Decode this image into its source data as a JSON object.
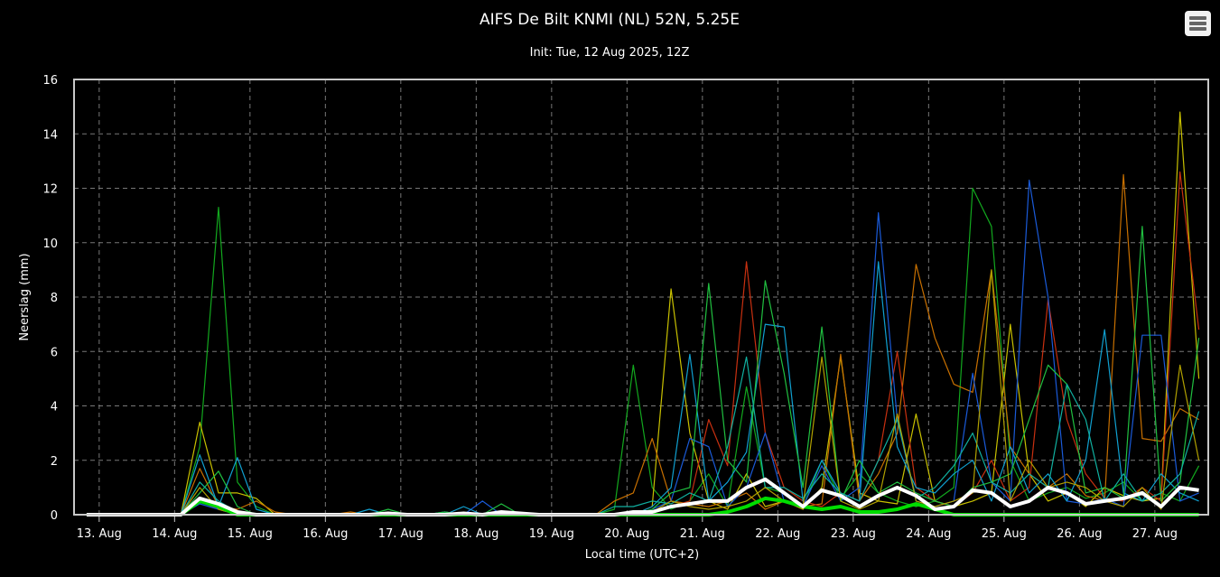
{
  "chart_data": {
    "type": "line",
    "title": "AIFS De Bilt KNMI (NL) 52N, 5.25E",
    "subtitle": "Init: Tue, 12 Aug 2025, 12Z",
    "xlabel": "Local time (UTC+2)",
    "ylabel": "Neerslag (mm)",
    "ylim": [
      0,
      16
    ],
    "yticks": [
      0,
      2,
      4,
      6,
      8,
      10,
      12,
      14,
      16
    ],
    "xlim": [
      "2025-08-12 16:00",
      "2025-08-27 17:00"
    ],
    "xticks": [
      {
        "date": "2025-08-13 00:00",
        "label": "13. Aug"
      },
      {
        "date": "2025-08-14 00:00",
        "label": "14. Aug"
      },
      {
        "date": "2025-08-15 00:00",
        "label": "15. Aug"
      },
      {
        "date": "2025-08-16 00:00",
        "label": "16. Aug"
      },
      {
        "date": "2025-08-17 00:00",
        "label": "17. Aug"
      },
      {
        "date": "2025-08-18 00:00",
        "label": "18. Aug"
      },
      {
        "date": "2025-08-19 00:00",
        "label": "19. Aug"
      },
      {
        "date": "2025-08-20 00:00",
        "label": "20. Aug"
      },
      {
        "date": "2025-08-21 00:00",
        "label": "21. Aug"
      },
      {
        "date": "2025-08-22 00:00",
        "label": "22. Aug"
      },
      {
        "date": "2025-08-23 00:00",
        "label": "23. Aug"
      },
      {
        "date": "2025-08-24 00:00",
        "label": "24. Aug"
      },
      {
        "date": "2025-08-25 00:00",
        "label": "25. Aug"
      },
      {
        "date": "2025-08-26 00:00",
        "label": "26. Aug"
      },
      {
        "date": "2025-08-27 00:00",
        "label": "27. Aug"
      }
    ],
    "grid": true,
    "legend": "none",
    "background": "#000000",
    "x": [
      "2025-08-12 20:00",
      "2025-08-13 02:00",
      "2025-08-13 08:00",
      "2025-08-13 14:00",
      "2025-08-13 20:00",
      "2025-08-14 02:00",
      "2025-08-14 08:00",
      "2025-08-14 14:00",
      "2025-08-14 20:00",
      "2025-08-15 02:00",
      "2025-08-15 08:00",
      "2025-08-15 14:00",
      "2025-08-15 20:00",
      "2025-08-16 02:00",
      "2025-08-16 08:00",
      "2025-08-16 14:00",
      "2025-08-16 20:00",
      "2025-08-17 02:00",
      "2025-08-17 08:00",
      "2025-08-17 14:00",
      "2025-08-17 20:00",
      "2025-08-18 02:00",
      "2025-08-18 08:00",
      "2025-08-18 14:00",
      "2025-08-18 20:00",
      "2025-08-19 02:00",
      "2025-08-19 08:00",
      "2025-08-19 14:00",
      "2025-08-19 20:00",
      "2025-08-20 02:00",
      "2025-08-20 08:00",
      "2025-08-20 14:00",
      "2025-08-20 20:00",
      "2025-08-21 02:00",
      "2025-08-21 08:00",
      "2025-08-21 14:00",
      "2025-08-21 20:00",
      "2025-08-22 02:00",
      "2025-08-22 08:00",
      "2025-08-22 14:00",
      "2025-08-22 20:00",
      "2025-08-23 02:00",
      "2025-08-23 08:00",
      "2025-08-23 14:00",
      "2025-08-23 20:00",
      "2025-08-24 02:00",
      "2025-08-24 08:00",
      "2025-08-24 14:00",
      "2025-08-24 20:00",
      "2025-08-25 02:00",
      "2025-08-25 08:00",
      "2025-08-25 14:00",
      "2025-08-25 20:00",
      "2025-08-26 02:00",
      "2025-08-26 08:00",
      "2025-08-26 14:00",
      "2025-08-26 20:00",
      "2025-08-27 02:00",
      "2025-08-27 08:00",
      "2025-08-27 14:00"
    ],
    "series": [
      {
        "color": "#12a81e",
        "role": "member",
        "values": [
          0,
          0,
          0,
          0,
          0,
          0,
          2.5,
          11.3,
          1.2,
          0.3,
          0,
          0,
          0,
          0,
          0,
          0,
          0.1,
          0,
          0,
          0.1,
          0,
          0,
          0,
          0,
          0,
          0,
          0,
          0,
          0.2,
          5.5,
          1.0,
          0.2,
          0.5,
          1.5,
          0.3,
          4.7,
          1.0,
          0.8,
          0.3,
          2.0,
          0.6,
          1.5,
          0.8,
          0.5,
          0.3,
          0.5,
          1.0,
          12.0,
          10.6,
          2.0,
          0.5,
          0.8,
          1.0,
          0.6,
          0.8,
          1.2,
          0.5,
          0.8,
          0.5,
          1.8
        ]
      },
      {
        "color": "#c8c000",
        "role": "member",
        "values": [
          0,
          0,
          0,
          0,
          0,
          0,
          3.4,
          0.8,
          0.8,
          0.6,
          0,
          0,
          0,
          0,
          0,
          0,
          0,
          0,
          0,
          0,
          0,
          0,
          0.1,
          0,
          0,
          0,
          0,
          0,
          0,
          0,
          0.3,
          8.3,
          3.0,
          0.5,
          0.2,
          1.5,
          0.3,
          0.5,
          0.2,
          1.0,
          5.8,
          0.8,
          0.5,
          0.4,
          3.7,
          0.5,
          0.3,
          0.5,
          0.8,
          7.0,
          1.5,
          0.5,
          0.8,
          0.3,
          1.0,
          0.7,
          0.5,
          0.6,
          14.8,
          5.0
        ]
      },
      {
        "color": "#c87000",
        "role": "member",
        "values": [
          0,
          0,
          0,
          0,
          0,
          0,
          1.7,
          0.3,
          0.2,
          0.5,
          0.1,
          0,
          0,
          0,
          0.1,
          0,
          0,
          0,
          0,
          0,
          0,
          0,
          0,
          0,
          0,
          0,
          0,
          0,
          0.5,
          0.8,
          2.8,
          0.5,
          0.4,
          0.3,
          0.5,
          0.8,
          0.2,
          0.5,
          0.3,
          0.4,
          5.9,
          0.5,
          1.5,
          3.0,
          9.2,
          6.5,
          4.8,
          4.5,
          9.0,
          2.5,
          1.5,
          1.0,
          1.5,
          0.7,
          0.5,
          12.5,
          2.8,
          2.7,
          3.9,
          3.5
        ]
      },
      {
        "color": "#c83010",
        "role": "member",
        "values": [
          0,
          0,
          0,
          0,
          0,
          0,
          0.5,
          0.2,
          0,
          0,
          0,
          0,
          0,
          0,
          0,
          0,
          0,
          0,
          0,
          0,
          0,
          0,
          0.1,
          0,
          0,
          0,
          0,
          0,
          0,
          0,
          0.1,
          0.3,
          0.5,
          3.5,
          1.8,
          9.3,
          3.0,
          1.0,
          0.5,
          0.3,
          0.8,
          0.5,
          2.0,
          6.0,
          1.0,
          0.5,
          0.3,
          0.8,
          2.0,
          0.5,
          1.0,
          7.9,
          3.5,
          1.5,
          0.6,
          0.5,
          1.0,
          0.5,
          12.6,
          6.8
        ]
      },
      {
        "color": "#1a5ad8",
        "role": "member",
        "values": [
          0,
          0,
          0,
          0,
          0,
          0,
          0.4,
          0.2,
          0,
          0,
          0,
          0,
          0,
          0,
          0,
          0,
          0,
          0,
          0,
          0.1,
          0,
          0.5,
          0,
          0,
          0,
          0,
          0,
          0,
          0,
          0,
          0.2,
          0.5,
          2.8,
          2.5,
          0.3,
          1.0,
          3.0,
          0.5,
          0.3,
          1.8,
          0.5,
          1.0,
          11.1,
          3.5,
          0.5,
          0.3,
          0.5,
          5.2,
          1.2,
          0.5,
          12.3,
          8.0,
          0.5,
          0.4,
          0.6,
          0.3,
          6.6,
          6.6,
          0.5,
          0.8
        ]
      },
      {
        "color": "#10a0d0",
        "role": "member",
        "values": [
          0,
          0,
          0,
          0,
          0,
          0,
          2.2,
          0.3,
          2.1,
          0.2,
          0,
          0,
          0,
          0,
          0,
          0.2,
          0,
          0,
          0,
          0,
          0.3,
          0,
          0,
          0,
          0,
          0,
          0,
          0,
          0,
          0,
          0.3,
          1.0,
          5.9,
          0.5,
          1.2,
          2.3,
          7.0,
          6.9,
          0.5,
          2.0,
          0.8,
          0.5,
          9.3,
          2.5,
          1.0,
          0.8,
          1.5,
          2.0,
          0.5,
          2.5,
          0.8,
          1.5,
          0.5,
          2.0,
          6.8,
          0.8,
          0.5,
          1.5,
          0.8,
          0.5
        ]
      },
      {
        "color": "#20c040",
        "role": "member",
        "values": [
          0,
          0,
          0,
          0,
          0,
          0,
          0.8,
          1.6,
          0.3,
          0,
          0,
          0,
          0,
          0,
          0,
          0,
          0.2,
          0,
          0,
          0.1,
          0,
          0,
          0.4,
          0,
          0,
          0,
          0,
          0,
          0,
          0,
          0.2,
          0.8,
          1.0,
          8.5,
          2.0,
          1.2,
          8.6,
          5.2,
          1.0,
          6.9,
          0.5,
          2.0,
          0.8,
          1.2,
          0.8,
          0.5,
          0.3,
          1.0,
          1.2,
          1.5,
          3.5,
          5.5,
          4.8,
          0.8,
          1.0,
          0.6,
          10.6,
          0.5,
          1.2,
          6.5
        ]
      },
      {
        "color": "#10b0a0",
        "role": "member",
        "values": [
          0,
          0,
          0,
          0,
          0,
          0,
          1.2,
          0.5,
          0.1,
          0,
          0,
          0,
          0,
          0,
          0,
          0,
          0,
          0,
          0,
          0,
          0,
          0,
          0,
          0,
          0,
          0,
          0,
          0,
          0.3,
          0.3,
          0.5,
          0.4,
          0.8,
          0.5,
          2.5,
          5.8,
          1.0,
          1.0,
          0.6,
          1.5,
          0.8,
          0.5,
          2.0,
          3.5,
          0.6,
          1.0,
          1.8,
          3.0,
          1.2,
          0.8,
          1.5,
          1.0,
          4.8,
          3.5,
          0.5,
          1.5,
          0.5,
          0.8,
          1.5,
          3.8
        ]
      },
      {
        "color": "#b0a000",
        "role": "member",
        "values": [
          0,
          0,
          0,
          0,
          0,
          0,
          1.0,
          0.2,
          0,
          0,
          0,
          0,
          0,
          0,
          0,
          0,
          0,
          0,
          0,
          0,
          0,
          0,
          0,
          0,
          0,
          0,
          0,
          0,
          0,
          0,
          0.1,
          0.5,
          0.3,
          0.2,
          0.3,
          0.5,
          1.0,
          0.5,
          0.3,
          5.8,
          0.5,
          0.2,
          0.5,
          3.7,
          0.5,
          0.3,
          0.5,
          0.8,
          9.0,
          0.5,
          2.0,
          1.0,
          1.2,
          1.0,
          0.5,
          0.3,
          1.0,
          0.2,
          5.5,
          2.0
        ]
      },
      {
        "color": "#00dd00",
        "role": "highlight",
        "values": [
          0,
          0,
          0,
          0,
          0,
          0,
          0.5,
          0.3,
          0,
          0,
          0,
          0,
          0,
          0,
          0,
          0,
          0,
          0,
          0,
          0,
          0,
          0,
          0,
          0,
          0,
          0,
          0,
          0,
          0,
          0,
          0,
          0,
          0,
          0,
          0.1,
          0.3,
          0.6,
          0.5,
          0.3,
          0.2,
          0.3,
          0.1,
          0.1,
          0.2,
          0.4,
          0.2,
          0,
          0,
          0,
          0,
          0,
          0,
          0,
          0,
          0,
          0,
          0,
          0,
          0,
          0
        ]
      },
      {
        "color": "#ffffff",
        "role": "mean",
        "values": [
          0,
          0,
          0,
          0,
          0,
          0,
          0.6,
          0.4,
          0.1,
          0,
          0,
          0,
          0,
          0,
          0,
          0,
          0.05,
          0,
          0,
          0,
          0.05,
          0,
          0.1,
          0.05,
          0,
          0,
          0,
          0,
          0,
          0.1,
          0.1,
          0.3,
          0.4,
          0.5,
          0.5,
          1.0,
          1.3,
          0.8,
          0.3,
          0.9,
          0.7,
          0.3,
          0.7,
          1.0,
          0.7,
          0.2,
          0.3,
          0.9,
          0.8,
          0.3,
          0.5,
          1.0,
          0.8,
          0.4,
          0.5,
          0.6,
          0.8,
          0.3,
          1.0,
          0.9
        ]
      }
    ]
  },
  "toolbar": {
    "menu_icon": "hamburger-menu-icon"
  }
}
